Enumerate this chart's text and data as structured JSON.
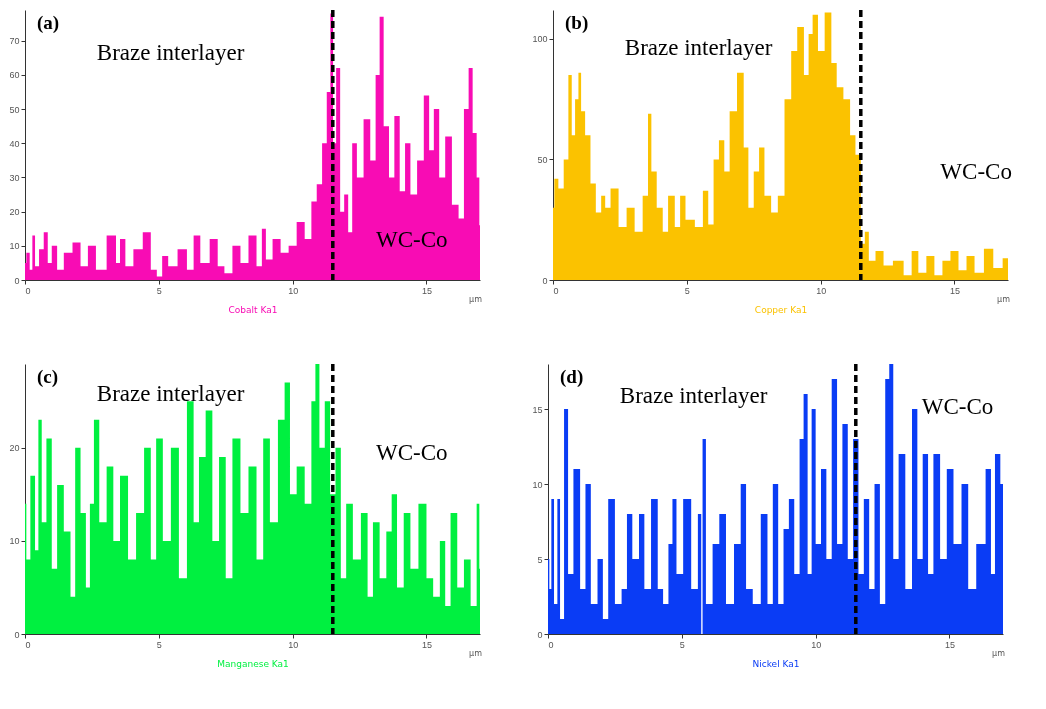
{
  "chart_data": [
    {
      "type": "area",
      "title": "(a)",
      "xlabel": "Cobalt Ka1",
      "color": "#f80cb4",
      "xlim": [
        0,
        17
      ],
      "xticks": [
        0,
        5,
        10,
        15
      ],
      "ylim": [
        0,
        79
      ],
      "yticks": [
        0,
        10,
        20,
        30,
        40,
        50,
        60,
        70
      ],
      "x": [
        0,
        0.1,
        0.25,
        0.3,
        0.45,
        0.6,
        0.8,
        0.9,
        1.1,
        1.3,
        1.6,
        1.95,
        2.2,
        2.5,
        2.8,
        3.3,
        3.5,
        3.6,
        3.9,
        4.2,
        4.6,
        4.8,
        5.05,
        5.2,
        5.5,
        5.9,
        6.2,
        6.4,
        6.7,
        7.1,
        7.3,
        7.6,
        7.9,
        8.2,
        8.5,
        8.8,
        8.9,
        9.1,
        9.4,
        9.7,
        10,
        10.3,
        10.6,
        10.8,
        11,
        11.2,
        11.35,
        11.47,
        11.55,
        11.7,
        11.85,
        12,
        12.15,
        12.3,
        12.5,
        12.8,
        13,
        13.2,
        13.3,
        13.5,
        13.7,
        13.9,
        14.1,
        14.3,
        14.5,
        14.8,
        15,
        15.2,
        15.35,
        15.6,
        15.8,
        16.1,
        16.3,
        16.5,
        16.65,
        16.8,
        16.95,
        17
      ],
      "values": [
        5,
        8,
        3,
        13,
        4,
        9,
        14,
        5,
        10,
        3,
        8,
        11,
        4,
        10,
        3,
        13,
        5,
        12,
        4,
        9,
        14,
        3,
        1,
        7,
        4,
        9,
        3,
        13,
        5,
        12,
        4,
        2,
        10,
        5,
        13,
        4,
        15,
        6,
        12,
        8,
        10,
        17,
        12,
        23,
        28,
        40,
        55,
        78,
        40,
        62,
        20,
        25,
        14,
        40,
        30,
        47,
        35,
        60,
        77,
        45,
        30,
        48,
        26,
        40,
        25,
        35,
        54,
        38,
        50,
        30,
        42,
        22,
        18,
        50,
        62,
        43,
        30,
        16
      ],
      "ref_lines": [
        {
          "axis": "x",
          "value": 11.5,
          "color": "#000000",
          "line_style": "dashed"
        }
      ],
      "annotations": [
        "Braze interlayer",
        "WC-Co",
        "µm"
      ]
    },
    {
      "type": "area",
      "title": "(b)",
      "xlabel": "Copper Ka1",
      "color": "#fbc200",
      "xlim": [
        0,
        17
      ],
      "xticks": [
        0,
        5,
        10,
        15
      ],
      "ylim": [
        0,
        112
      ],
      "yticks": [
        0,
        50,
        100
      ],
      "x": [
        0,
        0.1,
        0.3,
        0.5,
        0.65,
        0.75,
        0.9,
        1,
        1.1,
        1.3,
        1.5,
        1.7,
        1.9,
        2,
        2.3,
        2.6,
        2.9,
        3.2,
        3.5,
        3.6,
        3.75,
        4,
        4.2,
        4.4,
        4.7,
        4.8,
        5.1,
        5.5,
        5.7,
        5.9,
        6.1,
        6.3,
        6.5,
        6.7,
        7.05,
        7.2,
        7.4,
        7.6,
        7.8,
        8,
        8.3,
        8.5,
        8.8,
        9,
        9.25,
        9.5,
        9.6,
        9.8,
        10,
        10.3,
        10.5,
        10.7,
        11,
        11.2,
        11.4,
        11.6,
        11.7,
        11.9,
        12.2,
        12.5,
        12.9,
        13.3,
        13.5,
        13.8,
        14.1,
        14.4,
        14.7,
        15,
        15.3,
        15.6,
        15.9,
        16.3,
        16.6,
        17
      ],
      "values": [
        30,
        42,
        38,
        50,
        85,
        60,
        75,
        86,
        70,
        60,
        40,
        28,
        35,
        30,
        38,
        22,
        30,
        20,
        35,
        69,
        45,
        30,
        20,
        35,
        22,
        35,
        25,
        22,
        37,
        23,
        50,
        58,
        45,
        70,
        86,
        55,
        30,
        45,
        55,
        35,
        28,
        35,
        75,
        95,
        105,
        85,
        102,
        110,
        95,
        111,
        90,
        80,
        75,
        60,
        52,
        15,
        20,
        8,
        12,
        6,
        8,
        2,
        12,
        3,
        10,
        2,
        8,
        12,
        4,
        10,
        3,
        13,
        5,
        9
      ],
      "ref_lines": [
        {
          "axis": "x",
          "value": 11.5,
          "color": "#000000",
          "line_style": "dashed"
        }
      ],
      "annotations": [
        "Braze interlayer",
        "WC-Co",
        "µm"
      ]
    },
    {
      "type": "area",
      "title": "(c)",
      "xlabel": "Manganese Ka1",
      "color": "#00f040",
      "xlim": [
        0,
        17
      ],
      "xticks": [
        0,
        5,
        10,
        15
      ],
      "ylim": [
        0,
        29
      ],
      "yticks": [
        0,
        10,
        20
      ],
      "x": [
        0,
        0.1,
        0.3,
        0.45,
        0.55,
        0.7,
        0.9,
        1.1,
        1.3,
        1.6,
        1.8,
        1.95,
        2.2,
        2.35,
        2.5,
        2.65,
        2.9,
        3.2,
        3.4,
        3.7,
        4,
        4.3,
        4.6,
        4.8,
        5,
        5.3,
        5.6,
        5.9,
        6.2,
        6.4,
        6.6,
        6.9,
        7.1,
        7.4,
        7.6,
        7.9,
        8.2,
        8.5,
        8.8,
        9,
        9.3,
        9.6,
        9.8,
        10,
        10.3,
        10.6,
        10.8,
        10.9,
        11.1,
        11.3,
        11.5,
        11.7,
        11.9,
        12.1,
        12.4,
        12.7,
        12.9,
        13.1,
        13.4,
        13.6,
        13.8,
        14,
        14.3,
        14.5,
        14.9,
        15.1,
        15.4,
        15.6,
        15.8,
        16,
        16.3,
        16.5,
        16.8,
        16.95,
        17
      ],
      "values": [
        14,
        8,
        17,
        9,
        23,
        12,
        21,
        7,
        16,
        11,
        4,
        20,
        13,
        5,
        14,
        23,
        12,
        18,
        10,
        17,
        8,
        13,
        20,
        8,
        21,
        10,
        20,
        6,
        25,
        12,
        19,
        24,
        10,
        19,
        6,
        21,
        13,
        18,
        8,
        21,
        12,
        23,
        27,
        15,
        18,
        14,
        25,
        29,
        20,
        25,
        15,
        20,
        6,
        14,
        8,
        13,
        4,
        12,
        6,
        11,
        15,
        5,
        13,
        7,
        14,
        6,
        4,
        10,
        3,
        13,
        5,
        8,
        3,
        14,
        7
      ],
      "ref_lines": [
        {
          "axis": "x",
          "value": 11.5,
          "color": "#000000",
          "line_style": "dashed"
        }
      ],
      "annotations": [
        "Braze interlayer",
        "WC-Co",
        "µm"
      ]
    },
    {
      "type": "area",
      "title": "(d)",
      "xlabel": "Nickel Ka1",
      "color": "#0a3cf5",
      "xlim": [
        0,
        17
      ],
      "xticks": [
        0,
        5,
        10,
        15
      ],
      "ylim": [
        0,
        18
      ],
      "yticks": [
        0,
        5,
        10,
        15
      ],
      "x": [
        0,
        0.1,
        0.15,
        0.3,
        0.4,
        0.5,
        0.7,
        0.8,
        1.1,
        1.3,
        1.5,
        1.7,
        2,
        2.1,
        2.4,
        2.6,
        2.9,
        3,
        3.3,
        3.5,
        3.7,
        4,
        4.2,
        4.4,
        4.6,
        4.7,
        4.9,
        5.2,
        5.5,
        5.7,
        5.75,
        5.8,
        6,
        6.3,
        6.5,
        6.8,
        7.1,
        7.3,
        7.5,
        7.8,
        8.1,
        8.3,
        8.5,
        8.7,
        8.9,
        9.1,
        9.3,
        9.5,
        9.6,
        9.8,
        9.9,
        10.1,
        10.3,
        10.5,
        10.7,
        10.9,
        11.1,
        11.3,
        11.5,
        11.7,
        11.9,
        12.1,
        12.3,
        12.5,
        12.7,
        12.8,
        13,
        13.2,
        13.5,
        13.7,
        13.9,
        14.1,
        14.3,
        14.5,
        14.8,
        15,
        15.3,
        15.6,
        15.8,
        16.2,
        16.5,
        16.6,
        16.8,
        17
      ],
      "values": [
        5,
        3,
        9,
        2,
        9,
        1,
        15,
        4,
        11,
        3,
        10,
        2,
        5,
        1,
        9,
        2,
        3,
        8,
        5,
        8,
        3,
        9,
        3,
        2,
        6,
        9,
        4,
        9,
        3,
        8,
        0,
        13,
        2,
        6,
        8,
        2,
        6,
        10,
        3,
        2,
        8,
        2,
        10,
        2,
        7,
        9,
        4,
        13,
        16,
        4,
        15,
        6,
        11,
        5,
        17,
        6,
        14,
        5,
        13,
        4,
        9,
        3,
        10,
        2,
        17,
        18,
        5,
        12,
        3,
        15,
        5,
        12,
        4,
        12,
        5,
        11,
        6,
        10,
        3,
        6,
        11,
        4,
        12,
        10
      ],
      "ref_lines": [
        {
          "axis": "x",
          "value": 11.5,
          "color": "#000000",
          "line_style": "dashed"
        }
      ],
      "annotations": [
        "Braze interlayer",
        "WC-Co",
        "µm"
      ]
    }
  ]
}
